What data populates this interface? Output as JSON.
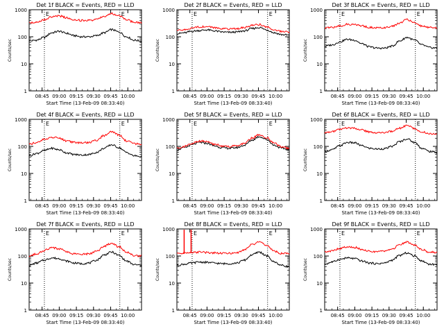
{
  "chart_data": [
    {
      "type": "line",
      "title": "Det 1f BLACK = Events, RED = LLD",
      "ylabel": "Counts/sec",
      "xlabel": "Start Time (13-Feb-09 08:33:40)",
      "x_ticks": [
        "08:45",
        "09:00",
        "09:15",
        "09:30",
        "09:45",
        "10:00"
      ],
      "y_ticks": [
        "1",
        "10",
        "100",
        "1000"
      ],
      "y_scale": "log",
      "ylim": [
        1,
        1000
      ],
      "markers": [
        "E",
        "E"
      ],
      "vertical_lines_at": [
        "08:47",
        "09:53"
      ],
      "series": [
        {
          "color": "#000000",
          "values": [
            70,
            75,
            95,
            140,
            160,
            135,
            110,
            100,
            100,
            110,
            140,
            185,
            150,
            100,
            75,
            70
          ]
        },
        {
          "color": "#ff0000",
          "values": [
            330,
            350,
            430,
            540,
            590,
            510,
            430,
            400,
            400,
            440,
            560,
            720,
            590,
            420,
            350,
            330
          ]
        }
      ]
    },
    {
      "type": "line",
      "title": "Det 2f BLACK = Events, RED = LLD",
      "ylabel": "Counts/sec",
      "xlabel": "Start Time (13-Feb-09 08:33:40)",
      "x_ticks": [
        "08:45",
        "09:00",
        "09:15",
        "09:30",
        "09:45",
        "10:00"
      ],
      "y_ticks": [
        "1",
        "10",
        "100",
        "1000"
      ],
      "y_scale": "log",
      "ylim": [
        1,
        1000
      ],
      "markers": [
        "E",
        "E"
      ],
      "vertical_lines_at": [
        "08:47",
        "09:53"
      ],
      "series": [
        {
          "color": "#000000",
          "values": [
            130,
            140,
            160,
            170,
            180,
            165,
            150,
            145,
            150,
            165,
            200,
            220,
            180,
            140,
            120,
            115
          ]
        },
        {
          "color": "#ff0000",
          "values": [
            170,
            180,
            210,
            230,
            240,
            220,
            200,
            195,
            200,
            220,
            260,
            280,
            230,
            180,
            160,
            150
          ]
        }
      ]
    },
    {
      "type": "line",
      "title": "Det 3f BLACK = Events, RED = LLD",
      "ylabel": "Counts/sec",
      "xlabel": "Start Time (13-Feb-09 08:33:40)",
      "x_ticks": [
        "08:45",
        "09:00",
        "09:15",
        "09:30",
        "09:45",
        "10:00"
      ],
      "y_ticks": [
        "1",
        "10",
        "100",
        "1000"
      ],
      "y_scale": "log",
      "ylim": [
        1,
        1000
      ],
      "markers": [
        "E",
        "E"
      ],
      "vertical_lines_at": [
        "08:47",
        "09:53"
      ],
      "series": [
        {
          "color": "#000000",
          "values": [
            45,
            50,
            65,
            80,
            75,
            55,
            42,
            38,
            38,
            45,
            70,
            95,
            75,
            50,
            40,
            38
          ]
        },
        {
          "color": "#ff0000",
          "values": [
            210,
            220,
            250,
            290,
            280,
            250,
            220,
            215,
            215,
            240,
            320,
            430,
            330,
            250,
            220,
            210
          ]
        }
      ]
    },
    {
      "type": "line",
      "title": "Det 4f BLACK = Events, RED = LLD",
      "ylabel": "Counts/sec",
      "xlabel": "Start Time (13-Feb-09 08:33:40)",
      "x_ticks": [
        "08:45",
        "09:00",
        "09:15",
        "09:30",
        "09:45",
        "10:00"
      ],
      "y_ticks": [
        "1",
        "10",
        "100",
        "1000"
      ],
      "y_scale": "log",
      "ylim": [
        1,
        1000
      ],
      "markers": [
        "E",
        "E"
      ],
      "vertical_lines_at": [
        "08:47",
        "09:53"
      ],
      "series": [
        {
          "color": "#000000",
          "values": [
            45,
            55,
            70,
            85,
            75,
            58,
            50,
            48,
            50,
            60,
            85,
            115,
            90,
            60,
            45,
            42
          ]
        },
        {
          "color": "#ff0000",
          "values": [
            120,
            140,
            180,
            220,
            200,
            160,
            140,
            135,
            140,
            170,
            250,
            350,
            260,
            160,
            125,
            120
          ]
        }
      ]
    },
    {
      "type": "line",
      "title": "Det 5f BLACK = Events, RED = LLD",
      "ylabel": "Counts/sec",
      "xlabel": "Start Time (13-Feb-09 08:33:40)",
      "x_ticks": [
        "08:45",
        "09:00",
        "09:15",
        "09:30",
        "09:45",
        "10:00"
      ],
      "y_ticks": [
        "1",
        "10",
        "100",
        "1000"
      ],
      "y_scale": "log",
      "ylim": [
        1,
        1000
      ],
      "markers": [
        "E",
        "E"
      ],
      "vertical_lines_at": [
        "08:47",
        "09:53"
      ],
      "series": [
        {
          "color": "#000000",
          "values": [
            75,
            90,
            115,
            140,
            130,
            105,
            90,
            85,
            90,
            110,
            170,
            230,
            180,
            110,
            85,
            75
          ]
        },
        {
          "color": "#ff0000",
          "values": [
            85,
            100,
            130,
            160,
            150,
            120,
            105,
            100,
            105,
            130,
            200,
            270,
            210,
            130,
            95,
            85
          ]
        }
      ]
    },
    {
      "type": "line",
      "title": "Det 6f BLACK = Events, RED = LLD",
      "ylabel": "Counts/sec",
      "xlabel": "Start Time (13-Feb-09 08:33:40)",
      "x_ticks": [
        "08:45",
        "09:00",
        "09:15",
        "09:30",
        "09:45",
        "10:00"
      ],
      "y_ticks": [
        "1",
        "10",
        "100",
        "1000"
      ],
      "y_scale": "log",
      "ylim": [
        1,
        1000
      ],
      "markers": [
        "E",
        "E"
      ],
      "vertical_lines_at": [
        "08:47",
        "09:53"
      ],
      "series": [
        {
          "color": "#000000",
          "values": [
            65,
            75,
            105,
            140,
            135,
            105,
            85,
            80,
            82,
            100,
            150,
            190,
            140,
            85,
            65,
            60
          ]
        },
        {
          "color": "#ff0000",
          "values": [
            320,
            350,
            420,
            480,
            460,
            400,
            340,
            320,
            320,
            360,
            470,
            590,
            450,
            340,
            300,
            290
          ]
        }
      ]
    },
    {
      "type": "line",
      "title": "Det 7f BLACK = Events, RED = LLD",
      "ylabel": "Counts/sec",
      "xlabel": "Start Time (13-Feb-09 08:33:40)",
      "x_ticks": [
        "08:45",
        "09:00",
        "09:15",
        "09:30",
        "09:45",
        "10:00"
      ],
      "y_ticks": [
        "1",
        "10",
        "100",
        "1000"
      ],
      "y_scale": "log",
      "ylim": [
        1,
        1000
      ],
      "markers": [
        "E",
        "E"
      ],
      "vertical_lines_at": [
        "08:47",
        "09:53"
      ],
      "series": [
        {
          "color": "#000000",
          "values": [
            45,
            55,
            70,
            85,
            80,
            65,
            55,
            52,
            55,
            70,
            110,
            140,
            105,
            65,
            48,
            45
          ]
        },
        {
          "color": "#ff0000",
          "values": [
            100,
            120,
            160,
            200,
            185,
            145,
            120,
            115,
            120,
            150,
            230,
            290,
            220,
            140,
            105,
            100
          ]
        }
      ]
    },
    {
      "type": "line",
      "title": "Det 8f BLACK = Events, RED = LLD",
      "ylabel": "Counts/sec",
      "xlabel": "Start Time (13-Feb-09 08:33:40)",
      "x_ticks": [
        "08:45",
        "09:00",
        "09:15",
        "09:30",
        "09:45",
        "10:00"
      ],
      "y_ticks": [
        "1",
        "10",
        "100",
        "1000"
      ],
      "y_scale": "log",
      "ylim": [
        1,
        1000
      ],
      "markers": [
        "E",
        "E"
      ],
      "vertical_lines_at": [
        "08:47",
        "09:53"
      ],
      "spike_at": "08:40",
      "series": [
        {
          "color": "#000000",
          "values": [
            45,
            50,
            55,
            60,
            58,
            55,
            52,
            52,
            55,
            70,
            110,
            140,
            100,
            60,
            45,
            40
          ]
        },
        {
          "color": "#ff0000",
          "values": [
            120,
            130,
            135,
            140,
            135,
            130,
            125,
            125,
            135,
            170,
            260,
            330,
            240,
            150,
            125,
            120
          ]
        }
      ]
    },
    {
      "type": "line",
      "title": "Det 9f BLACK = Events, RED = LLD",
      "ylabel": "Counts/sec",
      "xlabel": "Start Time (13-Feb-09 08:33:40)",
      "x_ticks": [
        "08:45",
        "09:00",
        "09:15",
        "09:30",
        "09:45",
        "10:00"
      ],
      "y_ticks": [
        "1",
        "10",
        "100",
        "1000"
      ],
      "y_scale": "log",
      "ylim": [
        1,
        1000
      ],
      "markers": [
        "E",
        "E"
      ],
      "vertical_lines_at": [
        "08:47",
        "09:53"
      ],
      "series": [
        {
          "color": "#000000",
          "values": [
            50,
            60,
            75,
            85,
            80,
            65,
            55,
            52,
            55,
            70,
            105,
            130,
            100,
            65,
            50,
            48
          ]
        },
        {
          "color": "#ff0000",
          "values": [
            140,
            155,
            190,
            220,
            210,
            175,
            150,
            145,
            150,
            180,
            260,
            330,
            250,
            170,
            140,
            135
          ]
        }
      ]
    }
  ]
}
